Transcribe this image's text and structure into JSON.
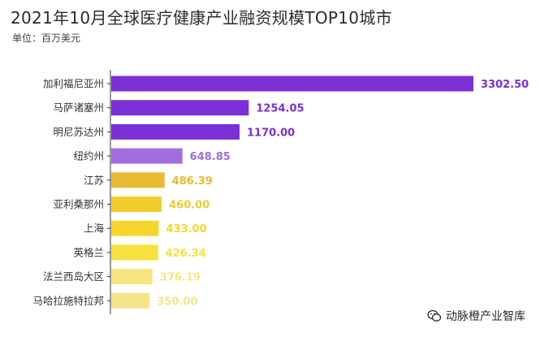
{
  "header": {
    "title": "2021年10月全球医疗健康产业融资规模TOP10城市",
    "unit": "单位：百万美元"
  },
  "watermark": {
    "text": "动脉橙产业智库",
    "icon": "wechat-icon"
  },
  "chart_data": {
    "type": "bar",
    "orientation": "horizontal",
    "title": "2021年10月全球医疗健康产业融资规模TOP10城市",
    "xlabel": "",
    "ylabel": "",
    "unit": "单位：百万美元",
    "grid": false,
    "legend": "none",
    "categories": [
      "加利福尼亚州",
      "马萨诸塞州",
      "明尼苏达州",
      "纽约州",
      "江苏",
      "亚利桑那州",
      "上海",
      "英格兰",
      "法兰西岛大区",
      "马哈拉施特拉邦"
    ],
    "values": [
      3302.5,
      1254.05,
      1170.0,
      648.85,
      486.39,
      460.0,
      433.0,
      426.34,
      376.19,
      350.0
    ],
    "value_labels": [
      "3302.50",
      "1254.05",
      "1170.00",
      "648.85",
      "486.39",
      "460.00",
      "433.00",
      "426.34",
      "376.19",
      "350.00"
    ],
    "bar_colors": [
      "#7b2fd6",
      "#7b2fd6",
      "#7b2fd6",
      "#a06ee0",
      "#e8b931",
      "#f2cc2c",
      "#f6d62e",
      "#f8e13c",
      "#f5e680",
      "#f3e58a"
    ],
    "xlim": [
      0,
      3302.5
    ]
  }
}
